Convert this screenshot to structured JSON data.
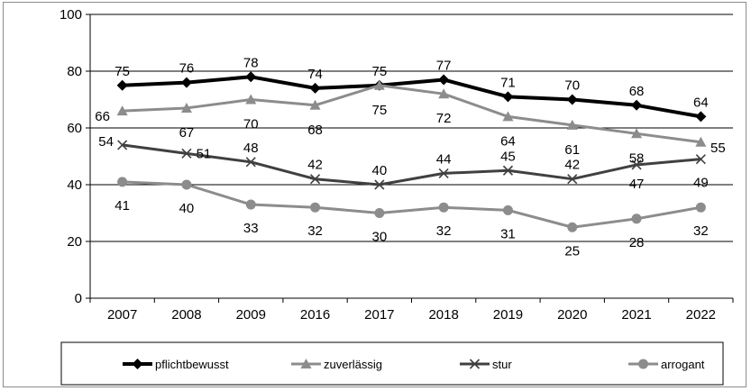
{
  "chart_data": {
    "type": "line",
    "categories": [
      "2007",
      "2008",
      "2009",
      "2016",
      "2017",
      "2018",
      "2019",
      "2020",
      "2021",
      "2022"
    ],
    "ylim": [
      0,
      100
    ],
    "yticks": [
      0,
      20,
      40,
      60,
      80,
      100
    ],
    "grid": true,
    "legend_position": "bottom",
    "series": [
      {
        "name": "pflichtbewusst",
        "values": [
          75,
          76,
          78,
          74,
          75,
          77,
          71,
          70,
          68,
          64
        ],
        "color": "#000000",
        "marker": "diamond"
      },
      {
        "name": "zuverlässig",
        "values": [
          66,
          67,
          70,
          68,
          75,
          72,
          64,
          61,
          58,
          55
        ],
        "color": "#8c8c8c",
        "marker": "triangle"
      },
      {
        "name": "stur",
        "values": [
          54,
          51,
          48,
          42,
          40,
          44,
          45,
          42,
          47,
          49
        ],
        "color": "#404040",
        "marker": "x"
      },
      {
        "name": "arrogant",
        "values": [
          41,
          40,
          33,
          32,
          30,
          32,
          31,
          25,
          28,
          32
        ],
        "color": "#8c8c8c",
        "marker": "circle"
      }
    ]
  }
}
